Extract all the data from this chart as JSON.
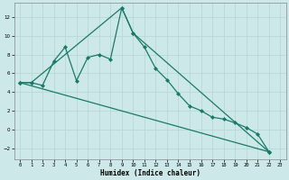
{
  "xlabel": "Humidex (Indice chaleur)",
  "bg_color": "#cce8e8",
  "grid_color": "#b8d8d8",
  "line_color": "#1a7a6a",
  "xlim": [
    -0.5,
    23.5
  ],
  "ylim": [
    -3.2,
    13.5
  ],
  "xticks": [
    0,
    1,
    2,
    3,
    4,
    5,
    6,
    7,
    8,
    9,
    10,
    11,
    12,
    13,
    14,
    15,
    16,
    17,
    18,
    19,
    20,
    21,
    22,
    23
  ],
  "yticks": [
    -2,
    0,
    2,
    4,
    6,
    8,
    10,
    12
  ],
  "series1_x": [
    0,
    1,
    2,
    3,
    4,
    5,
    6,
    7,
    8,
    9,
    10,
    11,
    12,
    13,
    14,
    15,
    16,
    17,
    18,
    19,
    20,
    21,
    22
  ],
  "series1_y": [
    5.0,
    5.0,
    4.7,
    7.3,
    8.8,
    5.2,
    7.7,
    8.0,
    7.5,
    13.0,
    10.3,
    8.8,
    6.5,
    5.3,
    3.8,
    2.5,
    2.0,
    1.3,
    1.1,
    0.7,
    0.2,
    -0.5,
    -2.4
  ],
  "series2_x": [
    0,
    1,
    9,
    10,
    22
  ],
  "series2_y": [
    5.0,
    5.0,
    13.0,
    10.3,
    -2.4
  ],
  "series3_x": [
    0,
    22
  ],
  "series3_y": [
    5.0,
    -2.4
  ],
  "marker": "D",
  "markersize": 2.0,
  "linewidth": 0.9
}
